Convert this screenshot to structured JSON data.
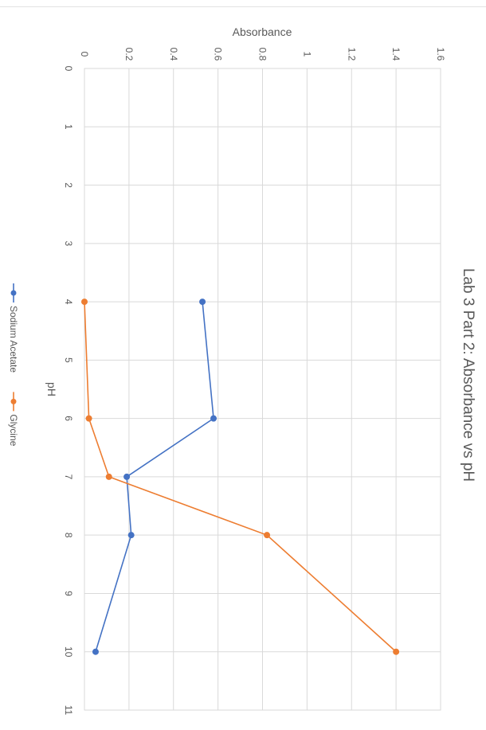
{
  "chart_data": {
    "type": "line",
    "orientation": "rotated-90-clockwise",
    "title": "Lab 3 Part 2: Absorbance vs pH",
    "xlabel": "pH",
    "ylabel": "Absorbance",
    "xlim": [
      0,
      11
    ],
    "ylim": [
      0,
      1.6
    ],
    "x_ticks": [
      "0",
      "1",
      "2",
      "3",
      "4",
      "5",
      "6",
      "7",
      "8",
      "9",
      "10",
      "11"
    ],
    "y_ticks": [
      "0",
      "0.2",
      "0.4",
      "0.6",
      "0.8",
      "1",
      "1.2",
      "1.4",
      "1.6"
    ],
    "grid": true,
    "legend_position": "bottom",
    "series": [
      {
        "name": "Sodium Acetate",
        "color": "#4472C4",
        "points": [
          [
            4,
            0.53
          ],
          [
            6,
            0.58
          ],
          [
            7,
            0.19
          ],
          [
            8,
            0.21
          ],
          [
            10,
            0.05
          ]
        ]
      },
      {
        "name": "Glycine",
        "color": "#ED7D31",
        "points": [
          [
            4,
            0.0
          ],
          [
            6,
            0.02
          ],
          [
            7,
            0.11
          ],
          [
            8,
            0.82
          ],
          [
            10,
            1.4
          ]
        ]
      }
    ]
  }
}
